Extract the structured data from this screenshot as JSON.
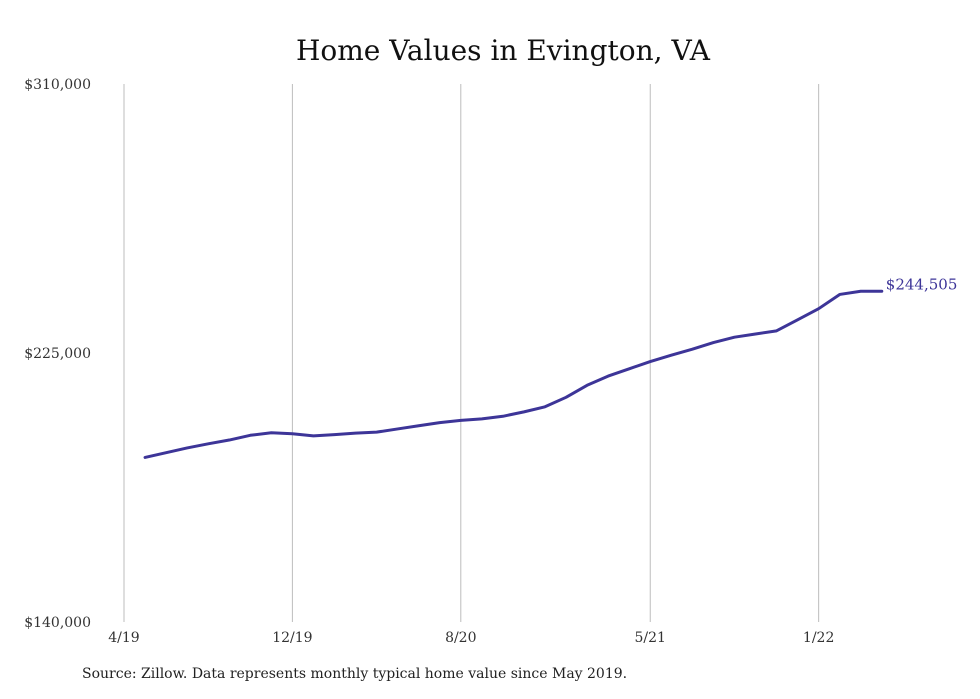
{
  "chart_data": {
    "type": "line",
    "title": "Home Values in Evington, VA",
    "xlabel": "",
    "ylabel": "",
    "ylim": [
      140000,
      310000
    ],
    "y_tick_labels": [
      "$310,000",
      "$225,000",
      "$140,000"
    ],
    "y_ticks": [
      310000,
      225000,
      140000
    ],
    "x_tick_labels": [
      "4/19",
      "12/19",
      "8/20",
      "5/21",
      "1/22"
    ],
    "x_ticks": [
      "2019-04",
      "2019-12",
      "2020-08",
      "2021-05",
      "2022-01"
    ],
    "grid": "vertical",
    "colors": {
      "line": "#3d3598",
      "grid": "#bdbdbd"
    },
    "series": [
      {
        "name": "",
        "x": [
          "2019-05",
          "2019-06",
          "2019-07",
          "2019-08",
          "2019-09",
          "2019-10",
          "2019-11",
          "2019-12",
          "2020-01",
          "2020-02",
          "2020-03",
          "2020-04",
          "2020-05",
          "2020-06",
          "2020-07",
          "2020-08",
          "2020-09",
          "2020-10",
          "2020-11",
          "2020-12",
          "2021-01",
          "2021-02",
          "2021-03",
          "2021-04",
          "2021-05",
          "2021-06",
          "2021-07",
          "2021-08",
          "2021-09",
          "2021-10",
          "2021-11",
          "2021-12",
          "2022-01",
          "2022-02",
          "2022-03",
          "2022-04"
        ],
        "values": [
          192000,
          193500,
          195000,
          196300,
          197500,
          199000,
          199800,
          199500,
          198800,
          199200,
          199700,
          200000,
          201000,
          202000,
          203000,
          203700,
          204200,
          205000,
          206400,
          208000,
          211000,
          214800,
          217700,
          220000,
          222300,
          224300,
          226200,
          228300,
          230000,
          231000,
          232000,
          235500,
          239000,
          243500,
          244505,
          244505
        ]
      }
    ],
    "annotations": [
      "$244,505"
    ]
  },
  "footer": {
    "source": "Source: Zillow. Data represents monthly typical home value since May 2019."
  }
}
